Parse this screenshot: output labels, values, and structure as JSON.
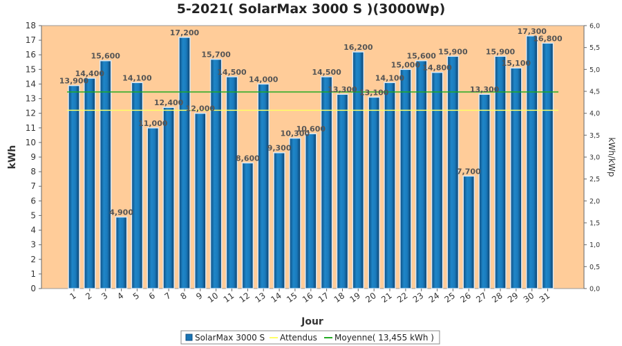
{
  "chart_data": {
    "type": "bar",
    "title": "5-2021( SolarMax 3000 S )(3000Wp)",
    "xlabel": "Jour",
    "ylabel": "kWh",
    "ylabel_right": "kWh/kWp",
    "ylim": [
      0,
      18
    ],
    "ylim_right": [
      0,
      6
    ],
    "yticks": [
      "0",
      "1",
      "2",
      "3",
      "4",
      "5",
      "6",
      "7",
      "8",
      "9",
      "10",
      "11",
      "12",
      "13",
      "14",
      "15",
      "16",
      "17",
      "18"
    ],
    "yticks_right": [
      "0,0",
      "0,5",
      "1,0",
      "1,5",
      "2,0",
      "2,5",
      "3,0",
      "3,5",
      "4,0",
      "4,5",
      "5,0",
      "5,5",
      "6,0"
    ],
    "grid": false,
    "categories": [
      "1",
      "2",
      "3",
      "4",
      "5",
      "6",
      "7",
      "8",
      "9",
      "10",
      "11",
      "12",
      "13",
      "14",
      "15",
      "16",
      "17",
      "18",
      "19",
      "20",
      "21",
      "22",
      "23",
      "24",
      "25",
      "26",
      "27",
      "28",
      "29",
      "30",
      "31"
    ],
    "series": [
      {
        "name": "SolarMax 3000 S",
        "type": "bar",
        "color": "#1a75b5",
        "values": [
          13.9,
          14.4,
          15.6,
          4.9,
          14.1,
          11.0,
          12.4,
          17.2,
          12.0,
          15.7,
          14.5,
          8.6,
          14.0,
          9.3,
          10.3,
          10.6,
          14.5,
          13.3,
          16.2,
          13.1,
          14.1,
          15.0,
          15.6,
          14.8,
          15.9,
          7.7,
          13.3,
          15.9,
          15.1,
          17.3,
          16.8
        ],
        "labels": [
          "13,900",
          "14,400",
          "15,600",
          "4,900",
          "14,100",
          "11,000",
          "12,400",
          "17,200",
          "12,000",
          "15,700",
          "14,500",
          "8,600",
          "14,000",
          "9,300",
          "10,300",
          "10,600",
          "14,500",
          "13,300",
          "16,200",
          "13,100",
          "14,100",
          "15,000",
          "15,600",
          "14,800",
          "15,900",
          "7,700",
          "13,300",
          "15,900",
          "15,100",
          "17,300",
          "16,800"
        ]
      },
      {
        "name": "Attendus",
        "type": "line",
        "color": "#ffff66",
        "value": 12.2
      },
      {
        "name": "Moyenne( 13,455 kWh )",
        "type": "line",
        "color": "#22aa22",
        "value": 13.455
      }
    ],
    "legend": "bottom",
    "background_color": "#ffcc99"
  }
}
